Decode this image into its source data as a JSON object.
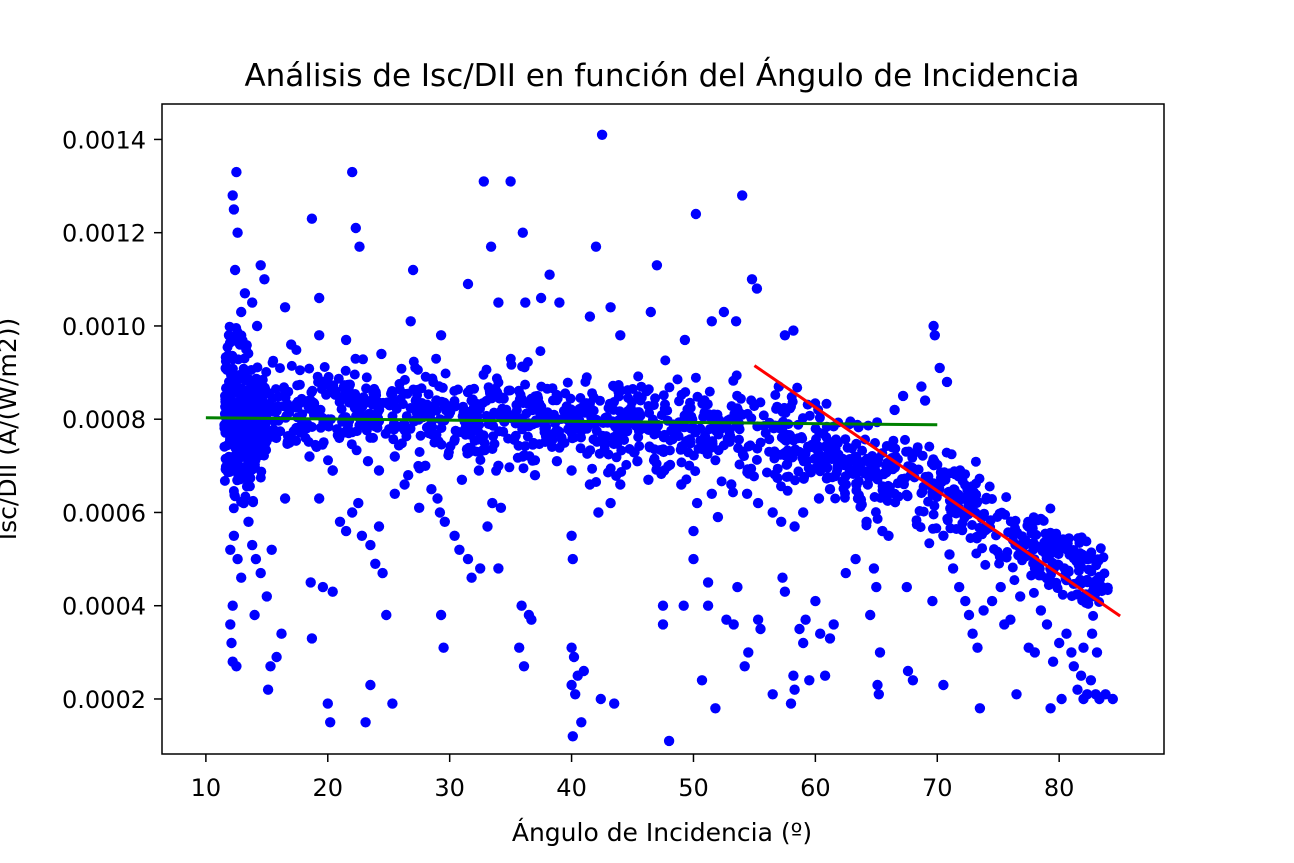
{
  "chart_data": {
    "type": "scatter",
    "title": "Análisis de Isc/DII en función del Ángulo de Incidencia",
    "xlabel": "Ángulo de Incidencia (º)",
    "ylabel": "Isc/DII (A/(W/m2))",
    "xlim": [
      6.4,
      88.6
    ],
    "ylim": [
      8.2e-05,
      0.001476
    ],
    "xticks": [
      10,
      20,
      30,
      40,
      50,
      60,
      70,
      80
    ],
    "xtick_labels": [
      "10",
      "20",
      "30",
      "40",
      "50",
      "60",
      "70",
      "80"
    ],
    "yticks": [
      0.0002,
      0.0004,
      0.0006,
      0.0008,
      0.001,
      0.0012,
      0.0014
    ],
    "ytick_labels": [
      "0.0002",
      "0.0004",
      "0.0006",
      "0.0008",
      "0.0010",
      "0.0012",
      "0.0014"
    ],
    "grid": false,
    "legend": "none",
    "series": [
      {
        "color": "#0000ff",
        "points": [
          [
            12.5,
            0.00133
          ],
          [
            12.2,
            0.00128
          ],
          [
            12.3,
            0.00125
          ],
          [
            12.6,
            0.0012
          ],
          [
            12.4,
            0.00112
          ],
          [
            14.5,
            0.00113
          ],
          [
            14.8,
            0.0011
          ],
          [
            13.2,
            0.00107
          ],
          [
            13.8,
            0.00105
          ],
          [
            12.9,
            0.00103
          ],
          [
            14.2,
            0.001
          ],
          [
            11.9,
            0.00098
          ],
          [
            12.8,
            0.00096
          ],
          [
            12.3,
            0.00055
          ],
          [
            12.0,
            0.00052
          ],
          [
            12.6,
            0.0005
          ],
          [
            12.9,
            0.00046
          ],
          [
            12.2,
            0.0004
          ],
          [
            12.0,
            0.00036
          ],
          [
            12.1,
            0.00032
          ],
          [
            12.2,
            0.00028
          ],
          [
            12.5,
            0.00027
          ],
          [
            13.1,
            0.00062
          ],
          [
            13.5,
            0.00058
          ],
          [
            13.8,
            0.00053
          ],
          [
            14.1,
            0.0005
          ],
          [
            14.5,
            0.00047
          ],
          [
            14.0,
            0.00038
          ],
          [
            15.0,
            0.00042
          ],
          [
            15.3,
            0.00027
          ],
          [
            15.8,
            0.00029
          ],
          [
            15.1,
            0.00022
          ],
          [
            16.2,
            0.00034
          ],
          [
            16.5,
            0.00063
          ],
          [
            15.4,
            0.00052
          ],
          [
            18.7,
            0.00123
          ],
          [
            19.3,
            0.00106
          ],
          [
            22.0,
            0.00133
          ],
          [
            22.3,
            0.00121
          ],
          [
            22.6,
            0.00117
          ],
          [
            27.0,
            0.00112
          ],
          [
            18.6,
            0.00045
          ],
          [
            18.7,
            0.00033
          ],
          [
            19.6,
            0.00044
          ],
          [
            20.4,
            0.00043
          ],
          [
            20.0,
            0.00019
          ],
          [
            20.2,
            0.00015
          ],
          [
            23.1,
            0.00015
          ],
          [
            23.5,
            0.00023
          ],
          [
            25.3,
            0.00019
          ],
          [
            24.8,
            0.00038
          ],
          [
            20.4,
            0.00069
          ],
          [
            19.3,
            0.00063
          ],
          [
            21.0,
            0.00058
          ],
          [
            21.5,
            0.00056
          ],
          [
            22.0,
            0.0006
          ],
          [
            22.8,
            0.00055
          ],
          [
            23.5,
            0.00053
          ],
          [
            23.9,
            0.00049
          ],
          [
            24.5,
            0.00047
          ],
          [
            24.2,
            0.00057
          ],
          [
            22.5,
            0.00062
          ],
          [
            25.5,
            0.00064
          ],
          [
            26.6,
            0.00068
          ],
          [
            27.5,
            0.00061
          ],
          [
            28.5,
            0.00065
          ],
          [
            29.0,
            0.00063
          ],
          [
            29.2,
            0.0006
          ],
          [
            29.6,
            0.00058
          ],
          [
            30.4,
            0.00055
          ],
          [
            30.8,
            0.00052
          ],
          [
            31.5,
            0.0005
          ],
          [
            31.8,
            0.00046
          ],
          [
            32.5,
            0.00048
          ],
          [
            33.1,
            0.00057
          ],
          [
            33.5,
            0.00062
          ],
          [
            34.2,
            0.00061
          ],
          [
            34.0,
            0.00048
          ],
          [
            29.3,
            0.00038
          ],
          [
            29.5,
            0.00031
          ],
          [
            32.8,
            0.00131
          ],
          [
            33.4,
            0.00117
          ],
          [
            35.0,
            0.00131
          ],
          [
            36.0,
            0.0012
          ],
          [
            38.2,
            0.00111
          ],
          [
            42.0,
            0.00117
          ],
          [
            42.5,
            0.00141
          ],
          [
            47.0,
            0.00113
          ],
          [
            50.2,
            0.00124
          ],
          [
            54.0,
            0.00128
          ],
          [
            35.7,
            0.00031
          ],
          [
            36.1,
            0.00027
          ],
          [
            36.5,
            0.00038
          ],
          [
            36.7,
            0.00037
          ],
          [
            35.9,
            0.0004
          ],
          [
            40.0,
            0.00031
          ],
          [
            40.2,
            0.00029
          ],
          [
            40.3,
            0.00021
          ],
          [
            40.0,
            0.00023
          ],
          [
            40.1,
            0.00012
          ],
          [
            40.8,
            0.00015
          ],
          [
            40.5,
            0.00025
          ],
          [
            41.0,
            0.00026
          ],
          [
            42.4,
            0.0002
          ],
          [
            43.5,
            0.00019
          ],
          [
            40.0,
            0.00055
          ],
          [
            40.1,
            0.0005
          ],
          [
            47.5,
            0.0004
          ],
          [
            47.5,
            0.00036
          ],
          [
            48.0,
            0.00011
          ],
          [
            49.2,
            0.0004
          ],
          [
            50.0,
            0.0005
          ],
          [
            50.0,
            0.00056
          ],
          [
            50.7,
            0.00024
          ],
          [
            51.2,
            0.00045
          ],
          [
            51.2,
            0.0004
          ],
          [
            51.8,
            0.00018
          ],
          [
            52.7,
            0.00037
          ],
          [
            53.3,
            0.00036
          ],
          [
            53.6,
            0.00044
          ],
          [
            54.2,
            0.00027
          ],
          [
            54.5,
            0.0003
          ],
          [
            55.3,
            0.00037
          ],
          [
            55.5,
            0.00035
          ],
          [
            56.5,
            0.00021
          ],
          [
            57.3,
            0.00046
          ],
          [
            57.5,
            0.00043
          ],
          [
            58.0,
            0.00019
          ],
          [
            58.2,
            0.00025
          ],
          [
            58.3,
            0.00022
          ],
          [
            58.7,
            0.00035
          ],
          [
            59.0,
            0.00032
          ],
          [
            59.2,
            0.00037
          ],
          [
            59.5,
            0.00024
          ],
          [
            60.0,
            0.00041
          ],
          [
            60.4,
            0.00034
          ],
          [
            60.8,
            0.00025
          ],
          [
            61.2,
            0.00033
          ],
          [
            61.5,
            0.00036
          ],
          [
            62.5,
            0.00047
          ],
          [
            63.3,
            0.0005
          ],
          [
            64.5,
            0.00038
          ],
          [
            64.8,
            0.00048
          ],
          [
            65.0,
            0.00044
          ],
          [
            65.1,
            0.00023
          ],
          [
            65.2,
            0.00021
          ],
          [
            65.3,
            0.0003
          ],
          [
            67.5,
            0.00044
          ],
          [
            67.6,
            0.00026
          ],
          [
            68.0,
            0.00024
          ],
          [
            69.6,
            0.00041
          ],
          [
            70.5,
            0.00023
          ],
          [
            73.5,
            0.00018
          ],
          [
            76.5,
            0.00021
          ],
          [
            79.3,
            0.00018
          ],
          [
            80.2,
            0.0002
          ],
          [
            57.0,
            0.00087
          ],
          [
            57.5,
            0.00098
          ],
          [
            58.2,
            0.00099
          ],
          [
            55.2,
            0.00108
          ],
          [
            54.8,
            0.0011
          ],
          [
            53.5,
            0.00101
          ],
          [
            52.5,
            0.00103
          ],
          [
            51.5,
            0.00101
          ],
          [
            49.3,
            0.00097
          ],
          [
            46.5,
            0.00103
          ],
          [
            44.0,
            0.00098
          ],
          [
            43.2,
            0.00104
          ],
          [
            41.5,
            0.00102
          ],
          [
            39.0,
            0.00105
          ],
          [
            37.5,
            0.00106
          ],
          [
            36.2,
            0.00105
          ],
          [
            34.0,
            0.00105
          ],
          [
            31.5,
            0.00109
          ],
          [
            29.3,
            0.00098
          ],
          [
            26.8,
            0.00101
          ],
          [
            24.4,
            0.00094
          ],
          [
            21.5,
            0.00097
          ],
          [
            19.3,
            0.00098
          ],
          [
            17.0,
            0.00096
          ],
          [
            16.5,
            0.00104
          ],
          [
            69.7,
            0.001
          ],
          [
            69.8,
            0.00098
          ],
          [
            70.2,
            0.00091
          ],
          [
            70.8,
            0.00088
          ],
          [
            69.0,
            0.00084
          ],
          [
            68.7,
            0.00087
          ],
          [
            67.2,
            0.00085
          ],
          [
            66.5,
            0.00082
          ],
          [
            70.5,
            0.00055
          ],
          [
            71.0,
            0.00051
          ],
          [
            71.3,
            0.00048
          ],
          [
            71.8,
            0.00044
          ],
          [
            72.3,
            0.00041
          ],
          [
            72.6,
            0.00038
          ],
          [
            72.9,
            0.00034
          ],
          [
            73.3,
            0.00031
          ],
          [
            73.8,
            0.00039
          ],
          [
            74.5,
            0.00041
          ],
          [
            75.2,
            0.00044
          ],
          [
            75.5,
            0.00036
          ],
          [
            76.0,
            0.00037
          ],
          [
            76.8,
            0.00042
          ],
          [
            77.5,
            0.00031
          ],
          [
            78.0,
            0.0003
          ],
          [
            78.5,
            0.00039
          ],
          [
            79.0,
            0.00036
          ],
          [
            79.5,
            0.00028
          ],
          [
            80.0,
            0.00032
          ],
          [
            80.6,
            0.00034
          ],
          [
            81.0,
            0.0003
          ],
          [
            81.2,
            0.00027
          ],
          [
            81.5,
            0.00022
          ],
          [
            81.8,
            0.00025
          ],
          [
            82.0,
            0.0002
          ],
          [
            82.3,
            0.00021
          ],
          [
            82.6,
            0.00024
          ],
          [
            83.0,
            0.00021
          ],
          [
            83.3,
            0.0002
          ],
          [
            83.8,
            0.00021
          ],
          [
            84.4,
            0.0002
          ],
          [
            82.0,
            0.00031
          ],
          [
            82.7,
            0.00034
          ],
          [
            83.1,
            0.0003
          ],
          [
            63.5,
            0.00063
          ],
          [
            64.2,
            0.00058
          ],
          [
            65.5,
            0.00056
          ],
          [
            66.0,
            0.00055
          ],
          [
            64.3,
            0.00066
          ],
          [
            62.5,
            0.00066
          ],
          [
            61.2,
            0.00065
          ],
          [
            60.3,
            0.00063
          ],
          [
            59.0,
            0.0006
          ],
          [
            58.3,
            0.00057
          ],
          [
            57.2,
            0.00058
          ],
          [
            56.5,
            0.0006
          ],
          [
            55.3,
            0.00062
          ],
          [
            54.4,
            0.00064
          ],
          [
            53.1,
            0.00066
          ],
          [
            52.0,
            0.00059
          ],
          [
            51.5,
            0.00064
          ],
          [
            50.3,
            0.00062
          ],
          [
            49.0,
            0.00066
          ],
          [
            47.6,
            0.00069
          ],
          [
            46.3,
            0.00067
          ],
          [
            45.4,
            0.00071
          ],
          [
            44.0,
            0.00066
          ],
          [
            43.2,
            0.00062
          ],
          [
            42.2,
            0.0006
          ],
          [
            41.5,
            0.00066
          ],
          [
            40.0,
            0.00069
          ],
          [
            38.8,
            0.00071
          ],
          [
            37.0,
            0.00068
          ],
          [
            36.0,
            0.00072
          ],
          [
            34.0,
            0.0007
          ],
          [
            32.4,
            0.00069
          ],
          [
            31.0,
            0.00067
          ],
          [
            28.0,
            0.0007
          ],
          [
            26.3,
            0.00066
          ],
          [
            25.5,
            0.00072
          ],
          [
            24.2,
            0.00069
          ],
          [
            23.3,
            0.00071
          ],
          [
            20.4,
            0.00069
          ],
          [
            18.5,
            0.00072
          ]
        ]
      }
    ],
    "fit_lines": [
      {
        "color": "#008000",
        "x": [
          10,
          70
        ],
        "y": [
          0.000803,
          0.000788
        ]
      },
      {
        "color": "#ff0000",
        "x": [
          55,
          85
        ],
        "y": [
          0.000915,
          0.000378
        ]
      }
    ]
  }
}
